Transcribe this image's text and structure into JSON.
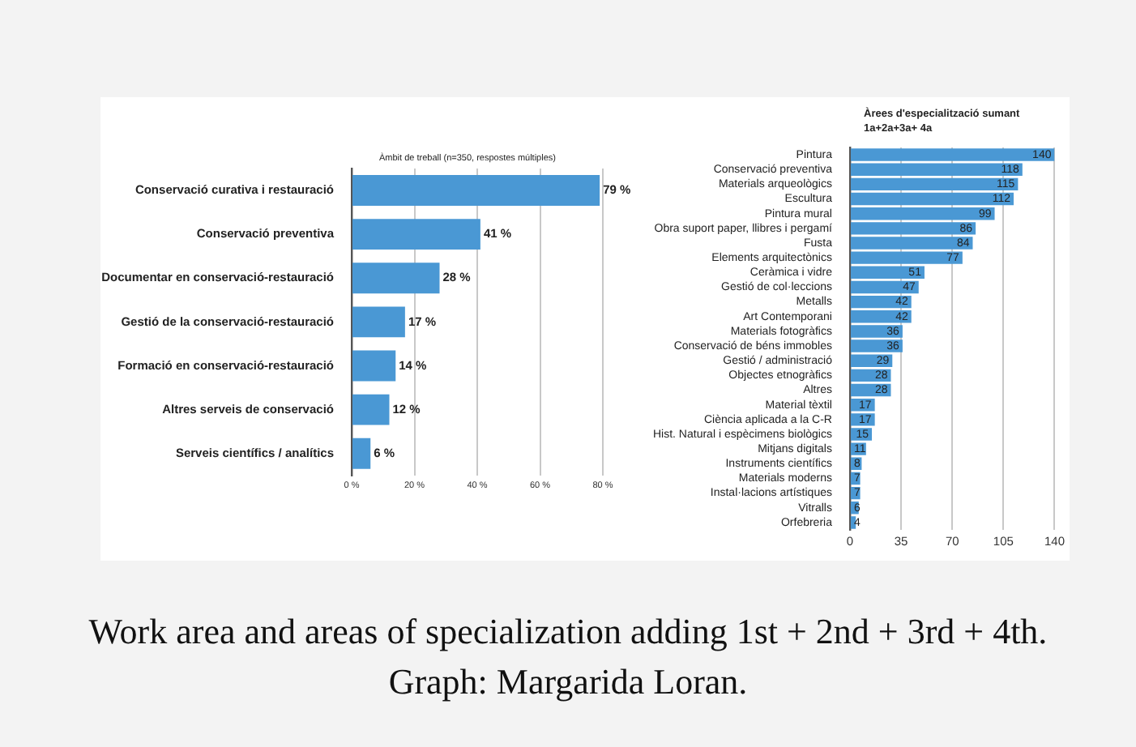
{
  "chart_data": [
    {
      "type": "bar",
      "orientation": "horizontal",
      "title": "Àmbit de treball (n=350, respostes múltiples)",
      "categories": [
        "Conservació curativa i restauració",
        "Conservació preventiva",
        "Documentar en conservació-restauració",
        "Gestió de la conservació-restauració",
        "Formació en conservació-restauració",
        "Altres serveis de conservació",
        "Serveis científics / analítics"
      ],
      "values": [
        79,
        41,
        28,
        17,
        14,
        12,
        6
      ],
      "value_labels": [
        "79 %",
        "41 %",
        "28 %",
        "17 %",
        "14 %",
        "12 %",
        "6 %"
      ],
      "color": "#4a98d4",
      "xlim": [
        0,
        80
      ],
      "xticks": [
        {
          "value": 0,
          "label": "0 %"
        },
        {
          "value": 20,
          "label": "20 %"
        },
        {
          "value": 40,
          "label": "40 %"
        },
        {
          "value": 60,
          "label": "60 %"
        },
        {
          "value": 80,
          "label": "80 %"
        }
      ],
      "grid": "x",
      "annotations": [
        "Work area and areas of specialization adding 1st + 2nd + 3rd + 4th. Graph: Margarida Loran."
      ]
    },
    {
      "type": "bar",
      "orientation": "horizontal",
      "title": "Àrees d'especialització sumant 1a+2a+3a+ 4a",
      "categories": [
        "Pintura",
        "Conservació preventiva",
        "Materials arqueològics",
        "Escultura",
        "Pintura mural",
        "Obra suport paper, llibres i pergamí",
        "Fusta",
        "Elements arquitectònics",
        "Ceràmica i vidre",
        "Gestió de col·leccions",
        "Metalls",
        "Art Contemporani",
        "Materials fotogràfics",
        "Conservació de béns immobles",
        "Gestió / administració",
        "Objectes etnogràfics",
        "Altres",
        "Material tèxtil",
        "Ciència aplicada a la C-R",
        "Hist. Natural i espècimens biològics",
        "Mitjans digitals",
        "Instruments científics",
        "Materials moderns",
        "Instal·lacions artístiques",
        "Vitralls",
        "Orfebreria"
      ],
      "values": [
        140,
        118,
        115,
        112,
        99,
        86,
        84,
        77,
        51,
        47,
        42,
        42,
        36,
        36,
        29,
        28,
        28,
        17,
        17,
        15,
        11,
        8,
        7,
        7,
        6,
        4
      ],
      "data_labels": true,
      "color": "#4a98d4",
      "xlim": [
        0,
        140
      ],
      "xticks": [
        0,
        35,
        70,
        105,
        140
      ],
      "grid": "x"
    }
  ]
}
